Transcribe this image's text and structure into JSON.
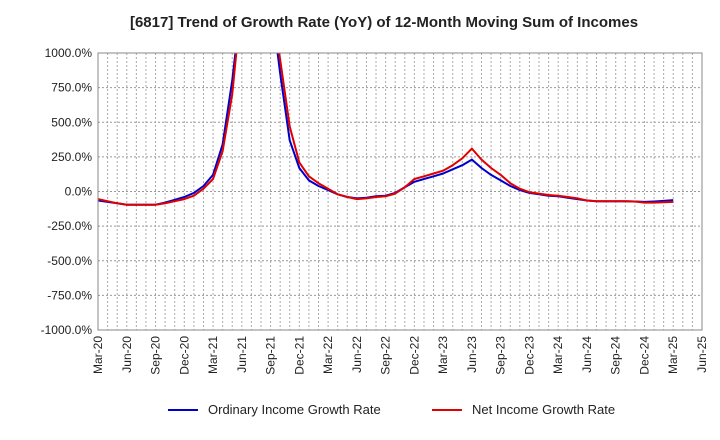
{
  "chart_data": {
    "type": "line",
    "title": "[6817]  Trend of Growth Rate (YoY) of 12-Month Moving Sum of Incomes",
    "xlabel": "",
    "ylabel": "",
    "ylim": [
      -1000,
      1000
    ],
    "yticks": [
      1000,
      750,
      500,
      250,
      0,
      -250,
      -500,
      -750,
      -1000
    ],
    "ytick_labels": [
      "1000.0%",
      "750.0%",
      "500.0%",
      "250.0%",
      "0.0%",
      "-250.0%",
      "-500.0%",
      "-750.0%",
      "-1000.0%"
    ],
    "xtick_labels": [
      "Mar-20",
      "Jun-20",
      "Sep-20",
      "Dec-20",
      "Mar-21",
      "Jun-21",
      "Sep-21",
      "Dec-21",
      "Mar-22",
      "Jun-22",
      "Sep-22",
      "Dec-22",
      "Mar-23",
      "Jun-23",
      "Sep-23",
      "Dec-23",
      "Mar-24",
      "Jun-24",
      "Sep-24",
      "Dec-24",
      "Mar-25",
      "Jun-25"
    ],
    "x": [
      "Mar-20",
      "Apr-20",
      "May-20",
      "Jun-20",
      "Jul-20",
      "Aug-20",
      "Sep-20",
      "Oct-20",
      "Nov-20",
      "Dec-20",
      "Jan-21",
      "Feb-21",
      "Mar-21",
      "Apr-21",
      "May-21",
      "Jun-21",
      "Jul-21",
      "Aug-21",
      "Sep-21",
      "Oct-21",
      "Nov-21",
      "Dec-21",
      "Jan-22",
      "Feb-22",
      "Mar-22",
      "Apr-22",
      "May-22",
      "Jun-22",
      "Jul-22",
      "Aug-22",
      "Sep-22",
      "Oct-22",
      "Nov-22",
      "Dec-22",
      "Jan-23",
      "Feb-23",
      "Mar-23",
      "Apr-23",
      "May-23",
      "Jun-23",
      "Jul-23",
      "Aug-23",
      "Sep-23",
      "Oct-23",
      "Nov-23",
      "Dec-23",
      "Jan-24",
      "Feb-24",
      "Mar-24",
      "Apr-24",
      "May-24",
      "Jun-24",
      "Jul-24",
      "Aug-24",
      "Sep-24",
      "Oct-24",
      "Nov-24",
      "Dec-24",
      "Jan-25",
      "Feb-25",
      "Mar-25"
    ],
    "series": [
      {
        "name": "Ordinary Income Growth Rate",
        "color": "#0000cc",
        "values": [
          -65,
          -75,
          -85,
          -95,
          -95,
          -95,
          -95,
          -80,
          -60,
          -40,
          -10,
          40,
          120,
          340,
          800,
          1400,
          null,
          null,
          1400,
          850,
          370,
          170,
          80,
          40,
          10,
          -20,
          -40,
          -50,
          -45,
          -35,
          -30,
          -10,
          30,
          70,
          90,
          110,
          130,
          160,
          190,
          230,
          170,
          120,
          80,
          40,
          10,
          -10,
          -20,
          -30,
          -35,
          -45,
          -55,
          -65,
          -70,
          -70,
          -70,
          -70,
          -72,
          -75,
          -72,
          -68,
          -62
        ]
      },
      {
        "name": "Net Income Growth Rate",
        "color": "#e00000",
        "values": [
          -55,
          -70,
          -85,
          -95,
          -95,
          -95,
          -95,
          -85,
          -70,
          -55,
          -30,
          20,
          90,
          290,
          700,
          1400,
          null,
          null,
          1400,
          950,
          470,
          210,
          110,
          60,
          20,
          -20,
          -40,
          -55,
          -50,
          -40,
          -35,
          -15,
          30,
          90,
          110,
          130,
          150,
          190,
          240,
          310,
          230,
          170,
          120,
          60,
          20,
          -5,
          -15,
          -25,
          -30,
          -40,
          -50,
          -65,
          -70,
          -70,
          -70,
          -70,
          -72,
          -80,
          -80,
          -78,
          -75
        ]
      }
    ],
    "legend": {
      "placement": "bottom",
      "entries": [
        "Ordinary Income Growth Rate",
        "Net Income Growth Rate"
      ]
    },
    "grid": true
  }
}
